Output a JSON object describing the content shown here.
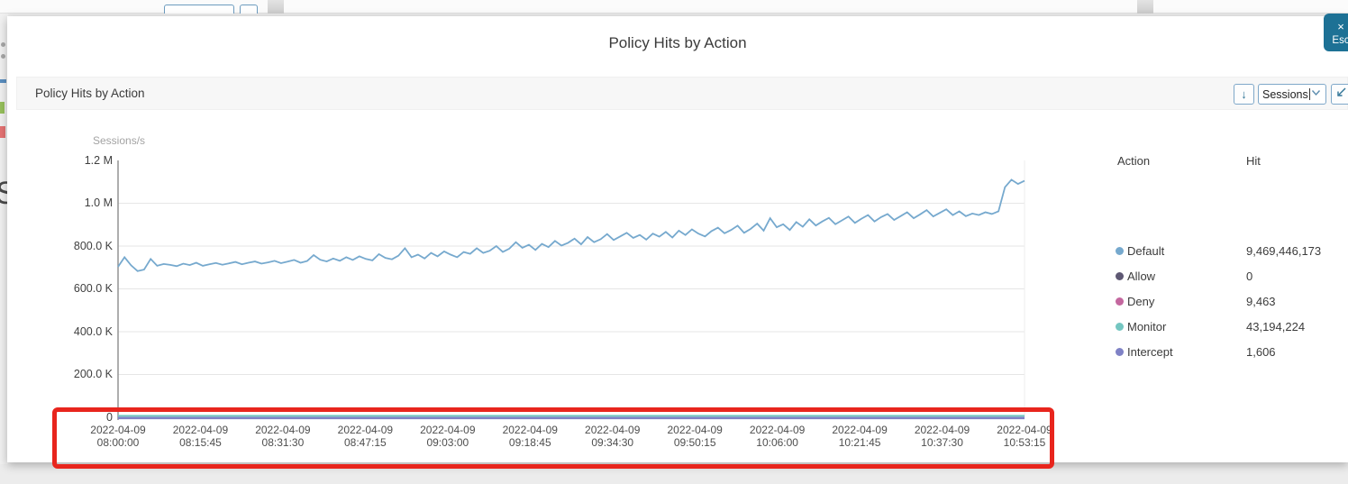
{
  "background": {
    "heading_fragment": "S"
  },
  "modal": {
    "title": "Policy Hits by Action",
    "esc_button": {
      "close_symbol": "×",
      "label": "Esc"
    },
    "toolbar": {
      "panel_title": "Policy Hits by Action",
      "download_icon": "↓",
      "series_dropdown_value": "Sessions",
      "dropdown_caret": "⌄"
    }
  },
  "chart_data": {
    "type": "line",
    "title": "Policy Hits by Action",
    "ylabel": "Sessions/s",
    "ylim": [
      0,
      1200000
    ],
    "grid": "horizontal",
    "y_ticks": [
      "1.2 M",
      "1.0 M",
      "800.0 K",
      "600.0 K",
      "400.0 K",
      "200.0 K",
      "0"
    ],
    "x_ticks": [
      {
        "date": "2022-04-09",
        "time": "08:00:00"
      },
      {
        "date": "2022-04-09",
        "time": "08:15:45"
      },
      {
        "date": "2022-04-09",
        "time": "08:31:30"
      },
      {
        "date": "2022-04-09",
        "time": "08:47:15"
      },
      {
        "date": "2022-04-09",
        "time": "09:03:00"
      },
      {
        "date": "2022-04-09",
        "time": "09:18:45"
      },
      {
        "date": "2022-04-09",
        "time": "09:34:30"
      },
      {
        "date": "2022-04-09",
        "time": "09:50:15"
      },
      {
        "date": "2022-04-09",
        "time": "10:06:00"
      },
      {
        "date": "2022-04-09",
        "time": "10:21:45"
      },
      {
        "date": "2022-04-09",
        "time": "10:37:30"
      },
      {
        "date": "2022-04-09",
        "time": "10:53:15"
      }
    ],
    "series": [
      {
        "name": "Default",
        "color": "#76a9ce",
        "unit": "sessions_per_s_thousands",
        "values": [
          703,
          748,
          710,
          683,
          690,
          740,
          708,
          716,
          712,
          706,
          718,
          711,
          722,
          708,
          715,
          721,
          713,
          719,
          726,
          715,
          722,
          728,
          718,
          724,
          731,
          720,
          727,
          735,
          722,
          730,
          758,
          736,
          728,
          742,
          731,
          748,
          735,
          752,
          740,
          733,
          762,
          745,
          738,
          755,
          790,
          748,
          760,
          742,
          768,
          752,
          775,
          760,
          748,
          772,
          764,
          790,
          768,
          778,
          800,
          772,
          788,
          818,
          792,
          806,
          782,
          810,
          795,
          824,
          802,
          815,
          835,
          808,
          842,
          818,
          832,
          856,
          828,
          845,
          862,
          838,
          852,
          830,
          858,
          844,
          866,
          840,
          872,
          852,
          878,
          858,
          845,
          870,
          886,
          860,
          875,
          895,
          862,
          880,
          905,
          872,
          930,
          888,
          902,
          875,
          912,
          890,
          925,
          896,
          915,
          932,
          902,
          920,
          938,
          908,
          928,
          945,
          915,
          935,
          950,
          922,
          940,
          958,
          930,
          948,
          968,
          938,
          955,
          972,
          945,
          962,
          940,
          952,
          945,
          958,
          950,
          962,
          1075,
          1110,
          1090,
          1105
        ]
      },
      {
        "name": "Allow",
        "color": "#5e5873",
        "flat_value": 0
      },
      {
        "name": "Deny",
        "color": "#c4679f",
        "flat_value": 0
      },
      {
        "name": "Monitor",
        "color": "#74c6c1",
        "flat_value": 0
      },
      {
        "name": "Intercept",
        "color": "#7f82c6",
        "flat_value": 0
      }
    ]
  },
  "legend": {
    "col_action": "Action",
    "col_hit": "Hit",
    "rows": [
      {
        "action": "Default",
        "hit": "9,469,446,173",
        "color": "#76a9ce"
      },
      {
        "action": "Allow",
        "hit": "0",
        "color": "#5e5873"
      },
      {
        "action": "Deny",
        "hit": "9,463",
        "color": "#c4679f"
      },
      {
        "action": "Monitor",
        "hit": "43,194,224",
        "color": "#74c6c1"
      },
      {
        "action": "Intercept",
        "hit": "1,606",
        "color": "#7f82c6"
      }
    ]
  },
  "annotation": {
    "shape": "rectangle",
    "color": "#e8251d",
    "highlights": "x-axis time labels"
  }
}
